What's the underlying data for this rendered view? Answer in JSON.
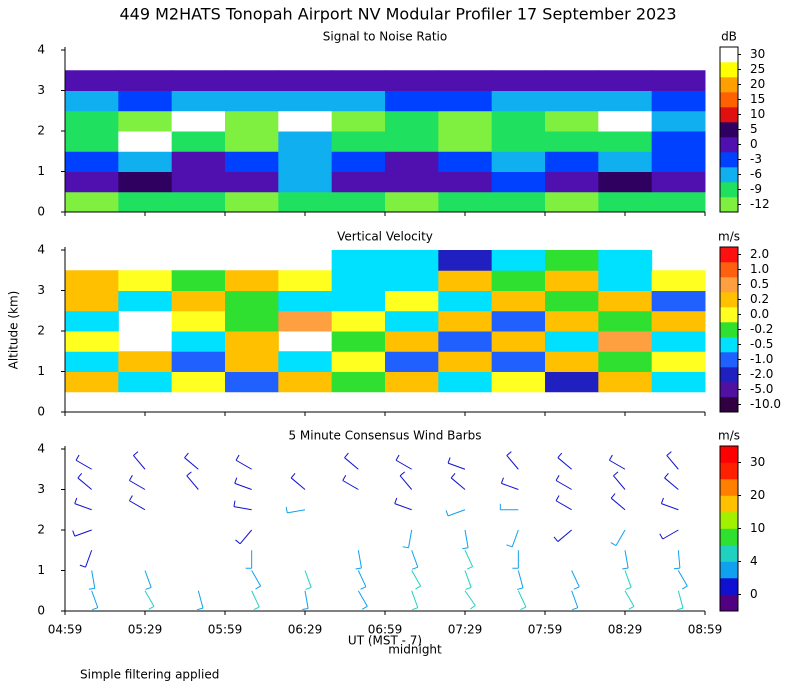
{
  "title": "449 M2HATS Tonopah Airport NV Modular Profiler 17 September 2023",
  "ylabel": "Altitude (km)",
  "xlabel": "UT (MST - 7)",
  "annotation": "midnight",
  "footnote": "Simple filtering applied",
  "xticks": [
    "04:59",
    "05:29",
    "05:59",
    "06:29",
    "06:59",
    "07:29",
    "07:59",
    "08:29",
    "08:59"
  ],
  "chart_data": [
    {
      "type": "heatmap",
      "title": "Signal to Noise Ratio",
      "unit": "dB",
      "ylim": [
        0,
        4
      ],
      "yticks": [
        0,
        1,
        2,
        3,
        4
      ],
      "levels": [
        -12,
        -9,
        -6,
        -3,
        0,
        5,
        10,
        15,
        20,
        25,
        30
      ],
      "colors": [
        "#80f040",
        "#20e060",
        "#10b0f0",
        "#0040ff",
        "#5010b0",
        "#300060",
        "#e01010",
        "#ff6000",
        "#ffa000",
        "#ffff00",
        "#ffffff"
      ],
      "z": [
        [
          -10,
          -9,
          -9,
          -10,
          -9,
          -9,
          -10,
          -9,
          -9,
          -10,
          -9,
          -9
        ],
        [
          3,
          6,
          4,
          4,
          -4,
          2,
          3,
          4,
          -2,
          3,
          5,
          4
        ],
        [
          -2,
          -4,
          0,
          -3,
          -5,
          -2,
          1,
          -3,
          -4,
          -3,
          -4,
          -2
        ],
        [
          -8,
          30,
          -9,
          -10,
          -6,
          -9,
          -8,
          -10,
          -9,
          -9,
          -8,
          -3
        ],
        [
          -9,
          -10,
          30,
          -11,
          30,
          -10,
          -9,
          -11,
          -9,
          -10,
          30,
          -6
        ],
        [
          -4,
          -3,
          -4,
          -6,
          -5,
          -4,
          -3,
          -3,
          -4,
          -6,
          -4,
          -3
        ],
        [
          2,
          3,
          1,
          0,
          4,
          1,
          2,
          3,
          0,
          2,
          1,
          1
        ],
        [
          null,
          null,
          null,
          null,
          null,
          null,
          null,
          null,
          null,
          null,
          null,
          null
        ]
      ]
    },
    {
      "type": "heatmap",
      "title": "Vertical Velocity",
      "unit": "m/s",
      "ylim": [
        0,
        4
      ],
      "yticks": [
        0,
        1,
        2,
        3,
        4
      ],
      "levels": [
        {
          "value": -10,
          "label": "-10.0"
        },
        {
          "value": -5,
          "label": "-5.0"
        },
        {
          "value": -2,
          "label": "-2.0"
        },
        {
          "value": -1,
          "label": "-1.0"
        },
        {
          "value": -0.5,
          "label": "-0.5"
        },
        {
          "value": -0.2,
          "label": "-0.2"
        },
        {
          "value": 0,
          "label": "0.0"
        },
        {
          "value": 0.2,
          "label": "0.2"
        },
        {
          "value": 0.5,
          "label": "0.5"
        },
        {
          "value": 1,
          "label": "1.0"
        },
        {
          "value": 2,
          "label": "2.0"
        }
      ],
      "colors": [
        "#300040",
        "#5010a0",
        "#2020c0",
        "#2060ff",
        "#00e0ff",
        "#30e030",
        "#ffff20",
        "#ffc000",
        "#ffa040",
        "#ff6010",
        "#ff1010"
      ],
      "z": [
        [
          null,
          null,
          null,
          null,
          null,
          null,
          null,
          null,
          null,
          null,
          null,
          null
        ],
        [
          0.3,
          -0.3,
          0.1,
          -0.6,
          0.2,
          -0.1,
          0.3,
          -0.4,
          0.1,
          -1.5,
          0.4,
          -0.3
        ],
        [
          -0.3,
          0.2,
          -0.8,
          0.3,
          -0.3,
          0.1,
          -0.6,
          0.2,
          -1,
          0.3,
          -0.2,
          0.1
        ],
        [
          0.1,
          null,
          -0.3,
          0.4,
          null,
          -0.2,
          0.3,
          -0.7,
          0.2,
          -0.3,
          0.5,
          -0.4
        ],
        [
          -0.4,
          null,
          0.1,
          -0.2,
          0.8,
          0.1,
          -0.5,
          0.2,
          -0.8,
          0.3,
          -0.2,
          0.2
        ],
        [
          0.2,
          -0.3,
          0.3,
          -0.1,
          -0.4,
          -0.3,
          0.1,
          -0.3,
          0.3,
          -0.1,
          0.3,
          -0.6
        ],
        [
          0.3,
          0.1,
          -0.2,
          0.2,
          0.1,
          -0.3,
          -0.4,
          0.2,
          -0.2,
          0.4,
          -0.3,
          0.1
        ],
        [
          null,
          null,
          null,
          null,
          null,
          -0.4,
          -0.3,
          -1.5,
          -0.3,
          -0.2,
          -0.4,
          null
        ]
      ]
    },
    {
      "type": "barbs",
      "title": "5 Minute Consensus Wind Barbs",
      "unit": "m/s",
      "ylim": [
        0,
        4
      ],
      "yticks": [
        0,
        1,
        2,
        3,
        4
      ],
      "levels": [
        0,
        4,
        10,
        20,
        30
      ],
      "colors": [
        "#500080",
        "#1010d0",
        "#10a0f0",
        "#20d0c0",
        "#30e030",
        "#a0f000",
        "#ffc000",
        "#ff8000",
        "#ff2000",
        "#ff0000"
      ],
      "y": [
        0.5,
        1,
        1.5,
        2,
        2.5,
        3,
        3.5
      ],
      "speed": [
        [
          6,
          8,
          5,
          7,
          6,
          5,
          9,
          8,
          7,
          6,
          8,
          7
        ],
        [
          4,
          5,
          null,
          5,
          7,
          6,
          8,
          9,
          6,
          5,
          7,
          6
        ],
        [
          3,
          null,
          null,
          4,
          null,
          5,
          6,
          7,
          4,
          null,
          5,
          4
        ],
        [
          2,
          null,
          null,
          3,
          null,
          null,
          4,
          6,
          5,
          3,
          4,
          3
        ],
        [
          3,
          3,
          null,
          2,
          4,
          null,
          3,
          5,
          4,
          3,
          2,
          3
        ],
        [
          2,
          3,
          2,
          3,
          2,
          3,
          2,
          3,
          3,
          2,
          3,
          2
        ],
        [
          2,
          2,
          3,
          2,
          null,
          3,
          2,
          2,
          3,
          2,
          2,
          2
        ]
      ],
      "direction": [
        [
          160,
          150,
          165,
          155,
          170,
          150,
          160,
          145,
          155,
          160,
          150,
          165
        ],
        [
          170,
          160,
          null,
          150,
          160,
          155,
          150,
          160,
          165,
          155,
          160,
          150
        ],
        [
          200,
          null,
          null,
          180,
          null,
          170,
          160,
          155,
          180,
          null,
          170,
          175
        ],
        [
          250,
          null,
          null,
          220,
          null,
          null,
          190,
          170,
          200,
          230,
          210,
          240
        ],
        [
          290,
          300,
          null,
          280,
          260,
          null,
          290,
          250,
          270,
          300,
          310,
          290
        ],
        [
          310,
          300,
          320,
          290,
          310,
          300,
          320,
          310,
          290,
          300,
          320,
          310
        ],
        [
          300,
          320,
          310,
          300,
          null,
          310,
          300,
          290,
          320,
          310,
          300,
          320
        ]
      ]
    }
  ]
}
